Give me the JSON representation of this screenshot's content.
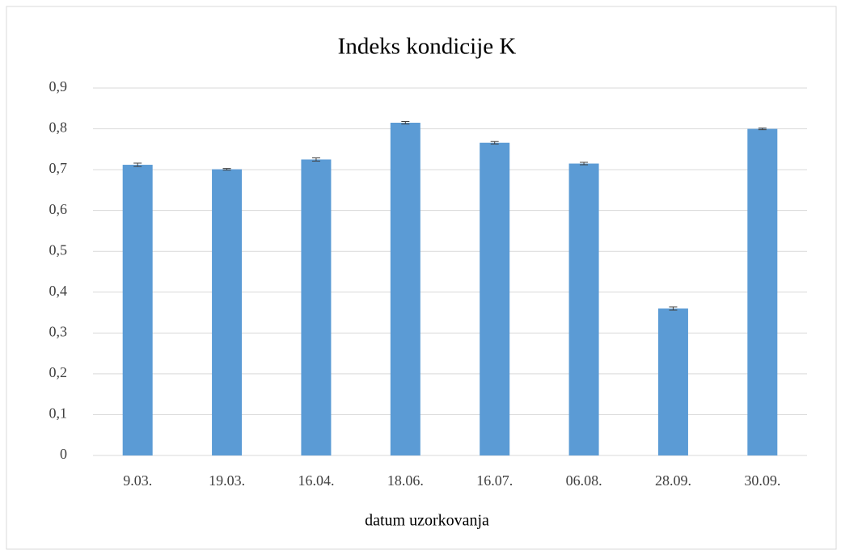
{
  "chart_data": {
    "type": "bar",
    "title": "Indeks kondicije K",
    "x_label": "datum uzorkovanja",
    "categories": [
      "9.03.",
      "19.03.",
      "16.04.",
      "18.06.",
      "16.07.",
      "06.08.",
      "28.09.",
      "30.09."
    ],
    "values": [
      0.712,
      0.701,
      0.725,
      0.815,
      0.766,
      0.715,
      0.36,
      0.8
    ],
    "errors": [
      0.004,
      0.002,
      0.004,
      0.003,
      0.003,
      0.003,
      0.004,
      0.002
    ],
    "color": "#5b9bd5",
    "ylim": [
      0,
      0.9
    ],
    "yticks": [
      0,
      {
        "value": 0.1,
        "label": "0,1"
      },
      {
        "value": 0.2,
        "label": "0,2"
      },
      {
        "value": 0.3,
        "label": "0,3"
      },
      {
        "value": 0.4,
        "label": "0,4"
      },
      {
        "value": 0.5,
        "label": "0,5"
      },
      {
        "value": 0.6,
        "label": "0,6"
      },
      {
        "value": 0.7,
        "label": "0,7"
      },
      {
        "value": 0.8,
        "label": "0,8"
      },
      {
        "value": 0.9,
        "label": "0,9"
      }
    ],
    "grid": true
  }
}
